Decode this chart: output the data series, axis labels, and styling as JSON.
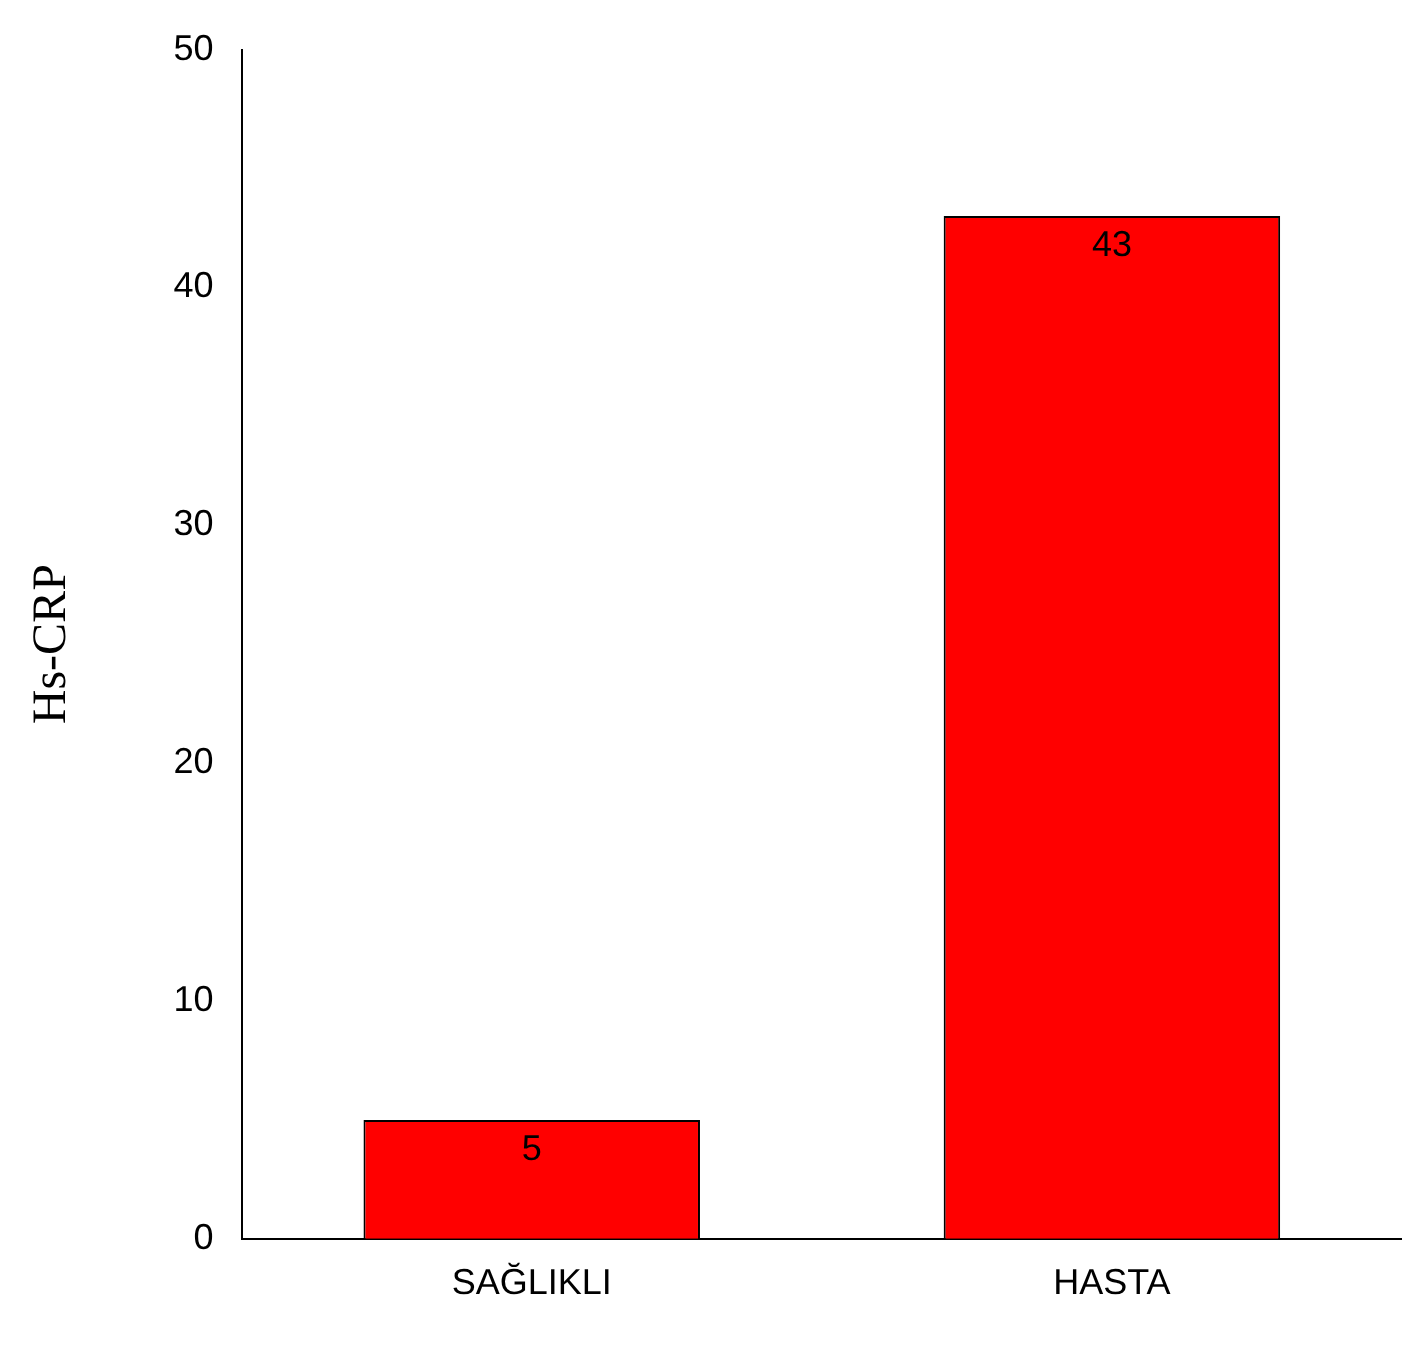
{
  "chart_data": {
    "type": "bar",
    "ylabel": "Hs-CRP",
    "categories": [
      "SAĞLIKLI",
      "HASTA"
    ],
    "values": [
      5,
      43
    ],
    "color": "#ff0000",
    "ylim": [
      0,
      50
    ],
    "yticks": [
      0,
      10,
      20,
      30,
      40,
      50
    ],
    "grid": false,
    "data_labels": true
  }
}
